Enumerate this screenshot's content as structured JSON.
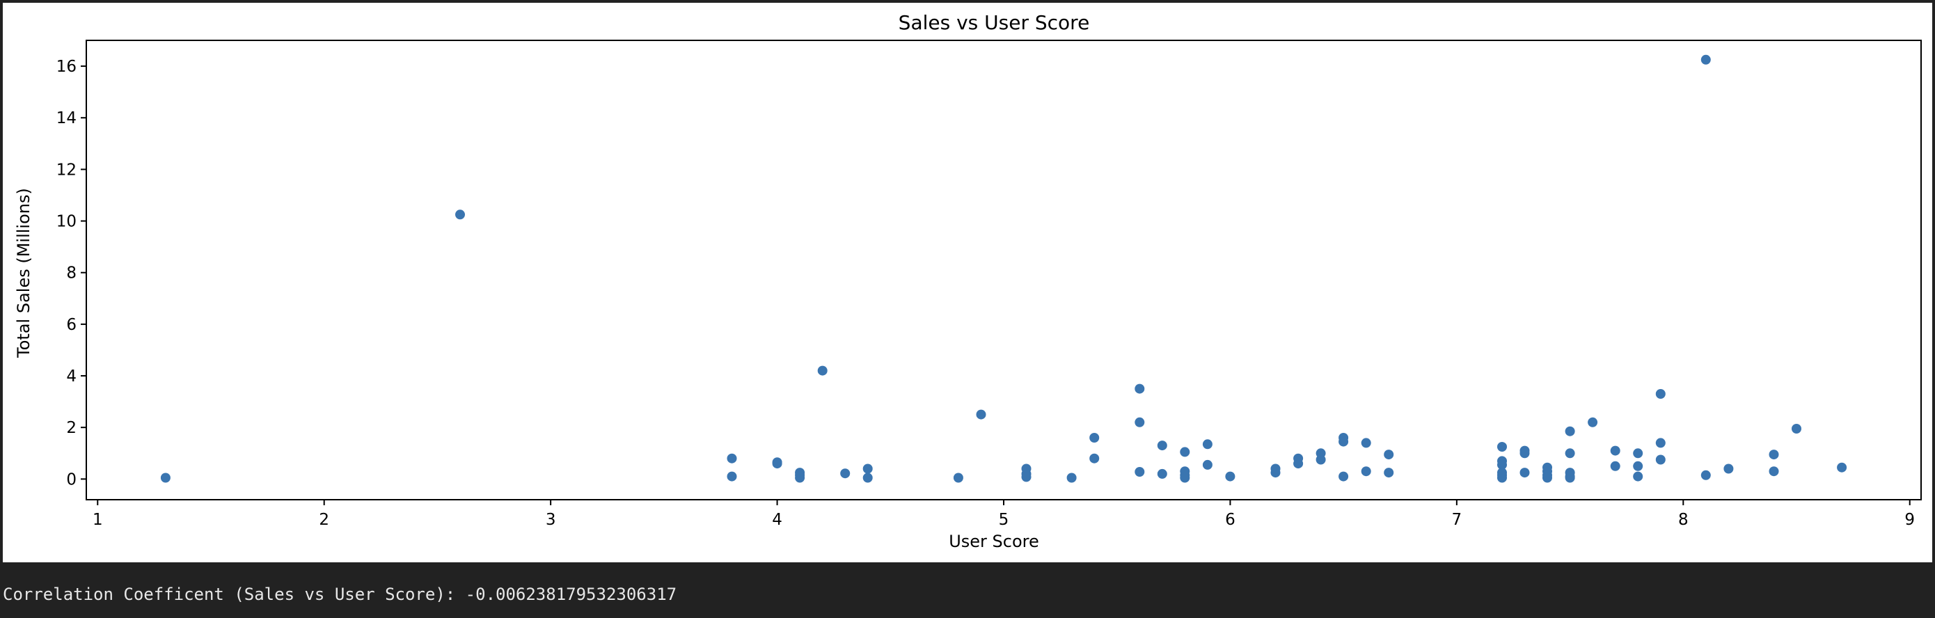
{
  "chart_data": {
    "type": "scatter",
    "title": "Sales vs User Score",
    "xlabel": "User Score",
    "ylabel": "Total Sales (Millions)",
    "xlim": [
      0.95,
      9.05
    ],
    "ylim": [
      -0.8,
      17.0
    ],
    "xticks": [
      1,
      2,
      3,
      4,
      5,
      6,
      7,
      8,
      9
    ],
    "yticks": [
      0,
      2,
      4,
      6,
      8,
      10,
      12,
      14,
      16
    ],
    "grid": false,
    "marker_color": "#3a75b0",
    "points": [
      [
        1.3,
        0.05
      ],
      [
        2.6,
        10.25
      ],
      [
        3.8,
        0.8
      ],
      [
        3.8,
        0.1
      ],
      [
        4.0,
        0.65
      ],
      [
        4.0,
        0.6
      ],
      [
        4.1,
        0.25
      ],
      [
        4.1,
        0.15
      ],
      [
        4.1,
        0.05
      ],
      [
        4.2,
        4.2
      ],
      [
        4.3,
        0.22
      ],
      [
        4.4,
        0.4
      ],
      [
        4.4,
        0.05
      ],
      [
        4.8,
        0.05
      ],
      [
        4.9,
        2.5
      ],
      [
        5.1,
        0.4
      ],
      [
        5.1,
        0.2
      ],
      [
        5.1,
        0.08
      ],
      [
        5.3,
        0.05
      ],
      [
        5.4,
        1.6
      ],
      [
        5.4,
        0.8
      ],
      [
        5.6,
        3.5
      ],
      [
        5.6,
        2.2
      ],
      [
        5.6,
        0.28
      ],
      [
        5.7,
        1.3
      ],
      [
        5.7,
        0.2
      ],
      [
        5.8,
        1.05
      ],
      [
        5.8,
        0.3
      ],
      [
        5.8,
        0.15
      ],
      [
        5.8,
        0.05
      ],
      [
        5.9,
        1.35
      ],
      [
        5.9,
        0.55
      ],
      [
        6.0,
        0.1
      ],
      [
        6.2,
        0.4
      ],
      [
        6.2,
        0.25
      ],
      [
        6.3,
        0.8
      ],
      [
        6.3,
        0.6
      ],
      [
        6.4,
        1.0
      ],
      [
        6.4,
        0.75
      ],
      [
        6.5,
        1.6
      ],
      [
        6.5,
        1.45
      ],
      [
        6.5,
        0.1
      ],
      [
        6.6,
        1.4
      ],
      [
        6.6,
        0.3
      ],
      [
        6.7,
        0.95
      ],
      [
        6.7,
        0.25
      ],
      [
        7.2,
        1.25
      ],
      [
        7.2,
        0.7
      ],
      [
        7.2,
        0.55
      ],
      [
        7.2,
        0.25
      ],
      [
        7.2,
        0.15
      ],
      [
        7.2,
        0.05
      ],
      [
        7.3,
        1.1
      ],
      [
        7.3,
        1.0
      ],
      [
        7.3,
        0.25
      ],
      [
        7.4,
        0.45
      ],
      [
        7.4,
        0.3
      ],
      [
        7.4,
        0.15
      ],
      [
        7.4,
        0.05
      ],
      [
        7.5,
        1.85
      ],
      [
        7.5,
        1.0
      ],
      [
        7.5,
        0.25
      ],
      [
        7.5,
        0.1
      ],
      [
        7.5,
        0.05
      ],
      [
        7.6,
        2.2
      ],
      [
        7.7,
        1.1
      ],
      [
        7.7,
        0.5
      ],
      [
        7.8,
        1.0
      ],
      [
        7.8,
        0.5
      ],
      [
        7.8,
        0.1
      ],
      [
        7.9,
        3.3
      ],
      [
        7.9,
        1.4
      ],
      [
        7.9,
        0.75
      ],
      [
        8.1,
        16.25
      ],
      [
        8.1,
        0.15
      ],
      [
        8.2,
        0.4
      ],
      [
        8.4,
        0.95
      ],
      [
        8.4,
        0.3
      ],
      [
        8.5,
        1.95
      ],
      [
        8.7,
        0.45
      ]
    ]
  },
  "console": {
    "output_text": "Correlation Coefficent (Sales vs User Score): -0.006238179532306317"
  }
}
